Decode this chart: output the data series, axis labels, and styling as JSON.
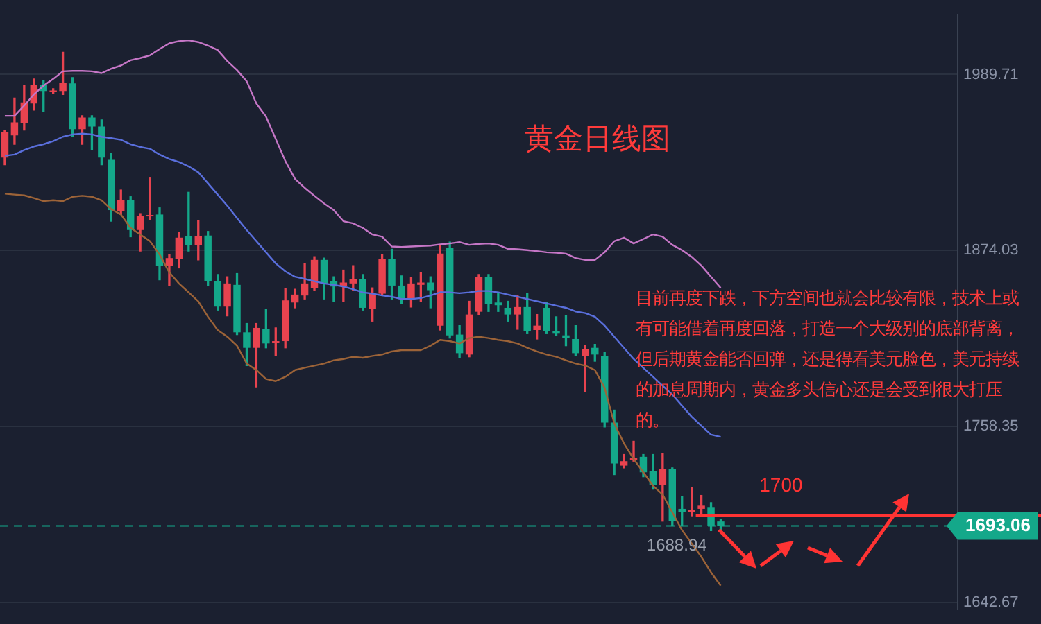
{
  "chart_data": {
    "type": "candlestick",
    "title": "黄金日线图",
    "annotations": [
      "目前再度下跌，下方空间也就会比较有限，技术上或有可能借着再度回落，打造一个大级别的底部背离，但后期黄金能否回弹，还是得看美元脸色，美元持续的加息周期内，黄金多头信心还是会受到很大打压的。",
      {
        "text": "1688.94",
        "y": 1688.94
      }
    ],
    "categories": [
      null,
      null,
      null,
      null,
      null,
      null,
      null,
      null,
      null,
      null,
      null,
      null,
      null,
      null,
      null,
      null,
      null,
      null,
      null,
      null,
      null,
      null,
      null,
      null,
      null,
      null,
      null,
      null,
      null,
      null,
      null,
      null,
      null,
      null,
      null,
      null,
      null,
      null,
      null,
      null,
      null,
      null,
      null,
      null,
      null,
      null,
      null,
      null,
      null,
      null,
      null,
      null,
      null,
      null,
      null,
      null,
      null,
      null,
      null,
      null,
      null,
      null,
      null,
      null,
      null,
      null,
      null,
      null,
      null,
      null,
      null,
      null,
      null,
      null,
      null,
      null,
      null,
      null,
      null,
      null,
      null,
      null,
      null,
      null,
      null,
      null,
      null,
      null,
      null,
      null,
      null,
      null,
      null,
      null,
      null,
      null,
      null,
      null,
      null
    ],
    "ohlc": [
      [
        1935.1,
        1953.2,
        1930.4,
        1951.7
      ],
      [
        1949.7,
        1974.2,
        1943.9,
        1958.2
      ],
      [
        1957.6,
        1982.4,
        1953.2,
        1971.3
      ],
      [
        1970.7,
        1986.8,
        1966.3,
        1983.0
      ],
      [
        1983.0,
        1985.9,
        1965.5,
        1978.9
      ],
      [
        1978.3,
        1980.4,
        1977.5,
        1979.2
      ],
      [
        1978.9,
        2004.3,
        1976.6,
        1984.5
      ],
      [
        1983.9,
        1987.7,
        1948.8,
        1953.8
      ],
      [
        1953.8,
        1962.6,
        1943.9,
        1961.4
      ],
      [
        1961.4,
        1962.6,
        1940.1,
        1955.5
      ],
      [
        1955.5,
        1959.9,
        1930.4,
        1935.1
      ],
      [
        1933.6,
        1938.0,
        1893.3,
        1900.6
      ],
      [
        1899.8,
        1913.8,
        1897.7,
        1907.1
      ],
      [
        1907.1,
        1909.4,
        1883.1,
        1887.5
      ],
      [
        1887.5,
        1898.3,
        1873.7,
        1896.8
      ],
      [
        1896.5,
        1921.7,
        1894.2,
        1897.4
      ],
      [
        1897.7,
        1902.1,
        1854.8,
        1864.1
      ],
      [
        1864.1,
        1871.4,
        1851.0,
        1869.1
      ],
      [
        1868.5,
        1886.0,
        1862.6,
        1882.5
      ],
      [
        1883.7,
        1912.3,
        1873.7,
        1877.8
      ],
      [
        1877.8,
        1893.9,
        1867.9,
        1883.7
      ],
      [
        1883.9,
        1886.6,
        1851.0,
        1853.9
      ],
      [
        1853.9,
        1858.3,
        1834.9,
        1837.2
      ],
      [
        1837.2,
        1856.8,
        1831.1,
        1852.4
      ],
      [
        1851.5,
        1858.9,
        1818.8,
        1820.3
      ],
      [
        1820.3,
        1826.1,
        1798.4,
        1810.1
      ],
      [
        1810.1,
        1826.1,
        1784.4,
        1823.2
      ],
      [
        1822.3,
        1835.5,
        1810.1,
        1813.0
      ],
      [
        1813.3,
        1823.2,
        1804.8,
        1814.5
      ],
      [
        1814.5,
        1848.9,
        1810.1,
        1841.3
      ],
      [
        1839.9,
        1848.6,
        1836.4,
        1845.1
      ],
      [
        1844.5,
        1865.6,
        1842.2,
        1852.4
      ],
      [
        1849.5,
        1870.0,
        1848.0,
        1867.9
      ],
      [
        1867.9,
        1869.1,
        1842.2,
        1852.4
      ],
      [
        1853.9,
        1856.8,
        1840.7,
        1850.4
      ],
      [
        1850.4,
        1861.2,
        1840.7,
        1853.0
      ],
      [
        1852.4,
        1864.1,
        1848.0,
        1855.4
      ],
      [
        1855.4,
        1858.3,
        1834.9,
        1836.4
      ],
      [
        1835.8,
        1849.5,
        1827.6,
        1845.7
      ],
      [
        1845.7,
        1871.4,
        1844.5,
        1868.5
      ],
      [
        1868.5,
        1874.9,
        1842.2,
        1851.0
      ],
      [
        1851.0,
        1857.4,
        1839.3,
        1842.2
      ],
      [
        1842.2,
        1856.2,
        1836.9,
        1852.4
      ],
      [
        1851.5,
        1859.7,
        1840.7,
        1853.0
      ],
      [
        1853.0,
        1856.8,
        1836.4,
        1848.0
      ],
      [
        1824.7,
        1877.3,
        1821.8,
        1872.0
      ],
      [
        1875.8,
        1879.6,
        1816.5,
        1818.3
      ],
      [
        1818.8,
        1824.7,
        1803.6,
        1806.6
      ],
      [
        1805.7,
        1840.7,
        1804.2,
        1832.0
      ],
      [
        1833.8,
        1858.3,
        1832.0,
        1856.8
      ],
      [
        1856.8,
        1858.3,
        1834.0,
        1838.7
      ],
      [
        1839.9,
        1846.6,
        1834.0,
        1838.1
      ],
      [
        1836.4,
        1840.7,
        1827.6,
        1832.0
      ],
      [
        1832.0,
        1844.5,
        1822.3,
        1836.9
      ],
      [
        1836.9,
        1845.7,
        1819.4,
        1821.2
      ],
      [
        1821.8,
        1832.0,
        1815.9,
        1824.7
      ],
      [
        1836.4,
        1839.9,
        1819.4,
        1821.2
      ],
      [
        1821.2,
        1830.5,
        1818.3,
        1819.4
      ],
      [
        1818.3,
        1831.1,
        1811.5,
        1816.5
      ],
      [
        1815.9,
        1824.7,
        1804.8,
        1806.6
      ],
      [
        1804.8,
        1811.5,
        1781.5,
        1809.5
      ],
      [
        1810.1,
        1812.4,
        1801.3,
        1805.7
      ],
      [
        1804.8,
        1807.1,
        1758.1,
        1761.0
      ],
      [
        1761.0,
        1769.2,
        1726.8,
        1734.1
      ],
      [
        1732.7,
        1740.0,
        1731.2,
        1735.6
      ],
      [
        1736.2,
        1748.7,
        1735.6,
        1737.6
      ],
      [
        1738.5,
        1740.0,
        1725.4,
        1728.3
      ],
      [
        1728.9,
        1740.0,
        1717.2,
        1720.1
      ],
      [
        1720.1,
        1740.5,
        1696.2,
        1730.6
      ],
      [
        1730.6,
        1731.2,
        1693.2,
        1696.2
      ],
      [
        1704.3,
        1712.2,
        1693.2,
        1702.0
      ],
      [
        1702.0,
        1718.1,
        1699.7,
        1703.4
      ],
      [
        1704.3,
        1713.1,
        1699.1,
        1706.4
      ],
      [
        1705.5,
        1708.4,
        1690.0,
        1693.2
      ],
      [
        1696.0,
        1697.5,
        1688.94,
        1693.06
      ],
      null,
      null,
      null,
      null,
      null,
      null,
      null,
      null,
      null,
      null,
      null,
      null,
      null,
      null,
      null,
      null,
      null,
      null,
      null,
      null,
      null,
      null,
      null,
      null
    ],
    "colors": [
      "#e8434f",
      "#e8434f",
      "#e8434f",
      "#e8434f",
      "#14a88a",
      "#e8434f",
      "#e8434f",
      "#14a88a",
      "#e8434f",
      "#14a88a",
      "#14a88a",
      "#14a88a",
      "#e8434f",
      "#14a88a",
      "#e8434f",
      "#e8434f",
      "#14a88a",
      "#e8434f",
      "#e8434f",
      "#14a88a",
      "#e8434f",
      "#14a88a",
      "#14a88a",
      "#e8434f",
      "#14a88a",
      "#14a88a",
      "#e8434f",
      "#14a88a",
      "#e8434f",
      "#e8434f",
      "#e8434f",
      "#e8434f",
      "#e8434f",
      "#14a88a",
      "#14a88a",
      "#e8434f",
      "#e8434f",
      "#14a88a",
      "#e8434f",
      "#e8434f",
      "#14a88a",
      "#14a88a",
      "#e8434f",
      "#e8434f",
      "#14a88a",
      "#e8434f",
      "#14a88a",
      "#14a88a",
      "#e8434f",
      "#e8434f",
      "#14a88a",
      "#14a88a",
      "#14a88a",
      "#e8434f",
      "#14a88a",
      "#e8434f",
      "#14a88a",
      "#14a88a",
      "#14a88a",
      "#14a88a",
      "#e8434f",
      "#14a88a",
      "#14a88a",
      "#14a88a",
      "#e8434f",
      "#e8434f",
      "#14a88a",
      "#14a88a",
      "#e8434f",
      "#14a88a",
      "#14a88a",
      "#e8434f",
      "#e8434f",
      "#14a88a",
      "#14a88a",
      null,
      null,
      null,
      null,
      null,
      null,
      null,
      null,
      null,
      null,
      null,
      null,
      null,
      null,
      null,
      null,
      null,
      null,
      null,
      null,
      null,
      null,
      null,
      null
    ],
    "series": [
      {
        "type": "line",
        "color": "#c576c6",
        "values": [
          1962.5,
          1962.5,
          1969.3,
          1976.6,
          1982.4,
          1986.8,
          1991.8,
          1992.1,
          1992.1,
          1991.8,
          1990.6,
          1993.5,
          1995.6,
          1999.1,
          2000.5,
          2002.3,
          2006.4,
          2010.2,
          2011.6,
          2012.2,
          2011.0,
          2008.7,
          2005.8,
          1998.5,
          1992.6,
          1985.3,
          1970.7,
          1962.0,
          1947.4,
          1932.8,
          1921.1,
          1915.2,
          1910.0,
          1905.0,
          1900.6,
          1893.3,
          1891.9,
          1888.9,
          1884.6,
          1883.1,
          1876.7,
          1876.4,
          1876.7,
          1877.0,
          1877.3,
          1878.1,
          1878.7,
          1879.6,
          1877.8,
          1878.4,
          1878.7,
          1877.8,
          1875.2,
          1874.9,
          1874.3,
          1873.7,
          1872.9,
          1872.6,
          1872.0,
          1869.1,
          1867.9,
          1867.9,
          1872.9,
          1880.2,
          1882.5,
          1878.7,
          1881.6,
          1884.6,
          1883.1,
          1877.8,
          1874.3,
          1869.9,
          1864.1,
          1856.8,
          1849.5,
          null,
          null,
          null,
          null,
          null,
          null,
          null,
          null,
          null,
          null,
          null,
          null,
          null,
          null,
          null,
          null,
          null,
          null,
          null,
          null,
          null,
          null,
          null,
          null
        ]
      },
      {
        "type": "line",
        "color": "#5a6fdc",
        "values": [
          1936.3,
          1937.1,
          1940.1,
          1942.4,
          1943.9,
          1945.9,
          1948.8,
          1950.3,
          1950.9,
          1950.3,
          1948.8,
          1947.9,
          1946.8,
          1943.9,
          1942.1,
          1940.9,
          1937.1,
          1934.2,
          1932.2,
          1929.3,
          1925.5,
          1918.2,
          1910.8,
          1903.5,
          1895.4,
          1887.5,
          1880.2,
          1872.9,
          1865.6,
          1860.3,
          1856.8,
          1855.4,
          1853.9,
          1852.4,
          1851.5,
          1850.4,
          1848.6,
          1846.6,
          1845.7,
          1844.5,
          1843.7,
          1842.2,
          1842.2,
          1842.8,
          1844.5,
          1846.6,
          1846.6,
          1846.0,
          1846.6,
          1847.5,
          1847.5,
          1846.6,
          1845.1,
          1843.7,
          1842.2,
          1840.7,
          1839.3,
          1837.8,
          1836.4,
          1834.0,
          1832.9,
          1830.5,
          1824.7,
          1817.4,
          1810.1,
          1802.8,
          1796.9,
          1791.1,
          1785.2,
          1779.4,
          1772.1,
          1764.8,
          1758.9,
          1753.1,
          1751.6,
          null,
          null,
          null,
          null,
          null,
          null,
          null,
          null,
          null,
          null,
          null,
          null,
          null,
          null,
          null,
          null,
          null,
          null,
          null,
          null,
          null,
          null,
          null,
          null
        ]
      },
      {
        "type": "line",
        "color": "#9c6338",
        "values": [
          1911.4,
          1910.8,
          1910.3,
          1908.5,
          1906.5,
          1907.1,
          1906.5,
          1909.4,
          1910.0,
          1909.4,
          1907.1,
          1901.2,
          1897.7,
          1888.9,
          1884.6,
          1880.2,
          1871.4,
          1859.7,
          1852.4,
          1846.6,
          1840.7,
          1830.5,
          1821.8,
          1817.4,
          1811.5,
          1799.8,
          1795.5,
          1789.6,
          1788.2,
          1791.1,
          1795.5,
          1797.0,
          1798.4,
          1799.8,
          1801.9,
          1802.8,
          1804.2,
          1803.6,
          1804.8,
          1805.7,
          1807.7,
          1808.6,
          1808.6,
          1808.6,
          1811.5,
          1815.3,
          1814.5,
          1813.0,
          1816.5,
          1817.4,
          1816.5,
          1815.3,
          1814.5,
          1813.0,
          1810.1,
          1807.7,
          1805.7,
          1804.2,
          1801.9,
          1799.8,
          1798.4,
          1795.5,
          1783.8,
          1760.4,
          1747.3,
          1737.1,
          1728.3,
          1719.5,
          1713.7,
          1702.0,
          1690.3,
          1681.6,
          1672.8,
          1662.6,
          1653.8,
          null,
          null,
          null,
          null,
          null,
          null,
          null,
          null,
          null,
          null,
          null,
          null,
          null,
          null,
          null,
          null,
          null,
          null,
          null,
          null,
          null,
          null,
          null,
          null
        ]
      }
    ],
    "ylim": [
      1638.3,
      2029.0
    ],
    "yticks": [
      1642.67,
      1758.35,
      1874.03,
      1989.71
    ],
    "ref_lines": [
      {
        "axis": "y",
        "value": 1700,
        "label": "1700",
        "color": "#ff3333",
        "line_style": "solid"
      },
      {
        "axis": "y",
        "value": 1693.06,
        "label": "1693.06",
        "color": "#14a88a",
        "line_style": "dashed"
      }
    ],
    "grid": "y",
    "legend": false,
    "marker": "none",
    "tick_labels": "y"
  }
}
